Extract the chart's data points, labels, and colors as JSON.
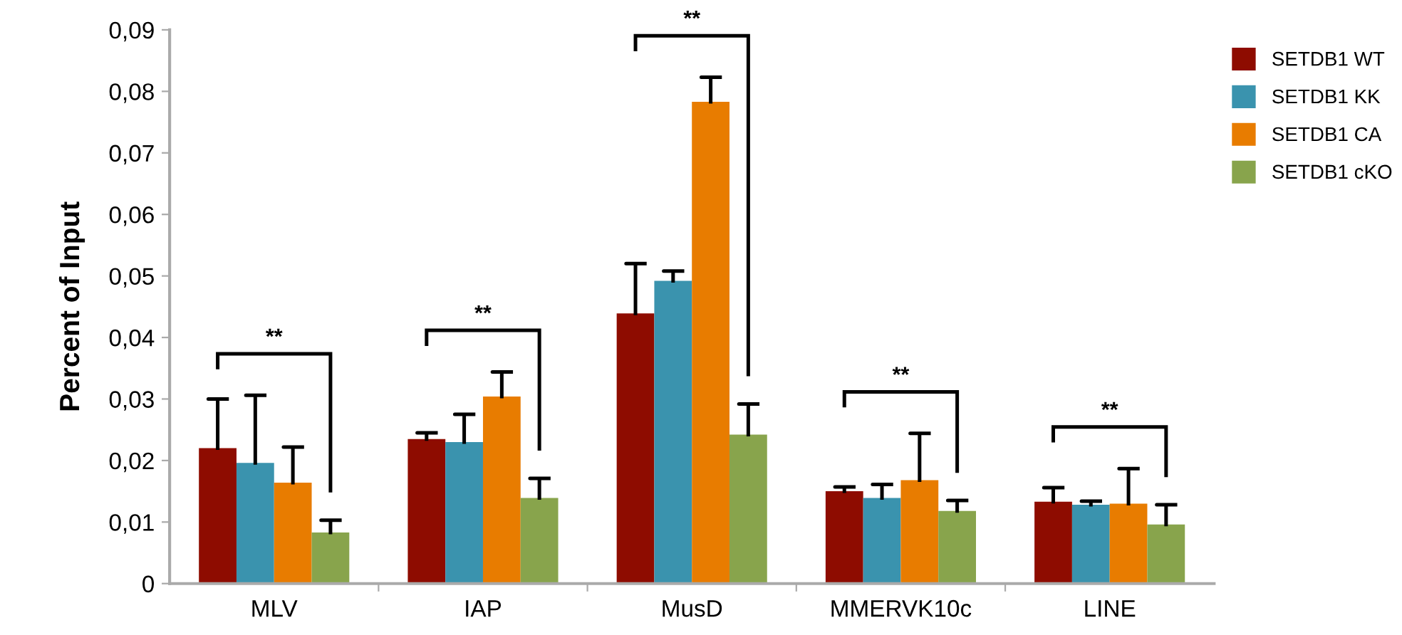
{
  "chart_data": {
    "type": "bar",
    "ylabel": "Percent of Input",
    "categories": [
      "MLV",
      "IAP",
      "MusD",
      "MMERVK10c",
      "LINE"
    ],
    "series": [
      {
        "name": "SETDB1 WT",
        "color": "#8e0c00",
        "values": [
          0.022,
          0.0235,
          0.0439,
          0.015,
          0.0133
        ],
        "errors": [
          [
            0.022,
            0.03
          ],
          [
            0.0235,
            0.0245
          ],
          [
            0.0439,
            0.052
          ],
          [
            0.015,
            0.0157
          ],
          [
            0.0133,
            0.0156
          ]
        ]
      },
      {
        "name": "SETDB1 KK",
        "color": "#3a93ae",
        "values": [
          0.0196,
          0.023,
          0.0492,
          0.0139,
          0.0128
        ],
        "errors": [
          [
            0.0196,
            0.0306
          ],
          [
            0.023,
            0.0275
          ],
          [
            0.0492,
            0.0508
          ],
          [
            0.0139,
            0.0161
          ],
          [
            0.0128,
            0.0134
          ]
        ]
      },
      {
        "name": "SETDB1 CA",
        "color": "#e87c00",
        "values": [
          0.0164,
          0.0304,
          0.0783,
          0.0168,
          0.013
        ],
        "errors": [
          [
            0.0164,
            0.0222
          ],
          [
            0.0304,
            0.0344
          ],
          [
            0.0783,
            0.0823
          ],
          [
            0.0168,
            0.0244
          ],
          [
            0.013,
            0.0187
          ]
        ]
      },
      {
        "name": "SETDB1 cKO",
        "color": "#88a44c",
        "values": [
          0.0083,
          0.0139,
          0.0242,
          0.0118,
          0.0096
        ],
        "errors": [
          [
            0.0083,
            0.0103
          ],
          [
            0.0139,
            0.0171
          ],
          [
            0.0242,
            0.0292
          ],
          [
            0.0118,
            0.0135
          ],
          [
            0.0096,
            0.0128
          ]
        ]
      }
    ],
    "ylim": [
      0,
      0.09
    ],
    "yticks": [
      0,
      {
        "value": 0.01,
        "label": "0,01"
      },
      {
        "value": 0.02,
        "label": "0,02"
      },
      {
        "value": 0.03,
        "label": "0,03"
      },
      {
        "value": 0.04,
        "label": "0,04"
      },
      {
        "value": 0.05,
        "label": "0,05"
      },
      {
        "value": 0.06,
        "label": "0,06"
      },
      {
        "value": 0.07,
        "label": "0,07"
      },
      {
        "value": 0.08,
        "label": "0,08"
      },
      {
        "value": 0.09,
        "label": "0,09"
      }
    ],
    "annotations": [
      "**",
      "**",
      "**",
      "**",
      "**"
    ],
    "grid": false,
    "legend": "top right"
  }
}
